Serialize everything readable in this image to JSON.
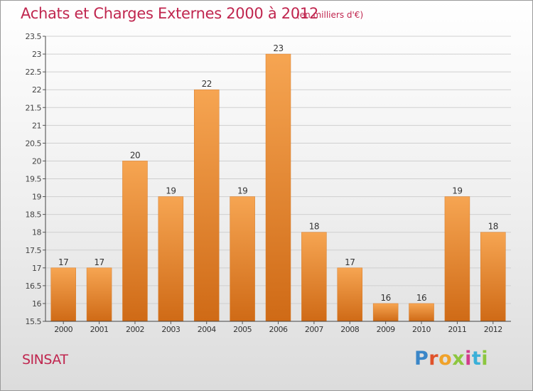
{
  "header": {
    "title": "Achats et Charges Externes 2000 à 2012",
    "subtitle": "(en milliers d'€)"
  },
  "footer": {
    "commune": "SINSAT",
    "logo_text": "Proxiti"
  },
  "colors": {
    "bar_light": "#f5a04a",
    "bar_dark": "#cf6a16",
    "title": "#c0264f",
    "grid": "#cfcfcf"
  },
  "chart_data": {
    "type": "bar",
    "title": "Achats et Charges Externes 2000 à 2012",
    "subtitle": "(en milliers d'€)",
    "xlabel": "",
    "ylabel": "",
    "categories": [
      "2000",
      "2001",
      "2002",
      "2003",
      "2004",
      "2005",
      "2006",
      "2007",
      "2008",
      "2009",
      "2010",
      "2011",
      "2012"
    ],
    "values": [
      17,
      17,
      20,
      19,
      22,
      19,
      23,
      18,
      17,
      16,
      16,
      19,
      18
    ],
    "data_labels": [
      "17",
      "17",
      "20",
      "19",
      "22",
      "19",
      "23",
      "18",
      "17",
      "16",
      "16",
      "19",
      "18"
    ],
    "ylim": [
      15.5,
      23.5
    ],
    "yticks": [
      "15.5",
      "16",
      "16.5",
      "17",
      "17.5",
      "18",
      "18.5",
      "19",
      "19.5",
      "20",
      "20.5",
      "21",
      "21.5",
      "22",
      "22.5",
      "23",
      "23.5"
    ],
    "grid": true,
    "legend": "none"
  }
}
